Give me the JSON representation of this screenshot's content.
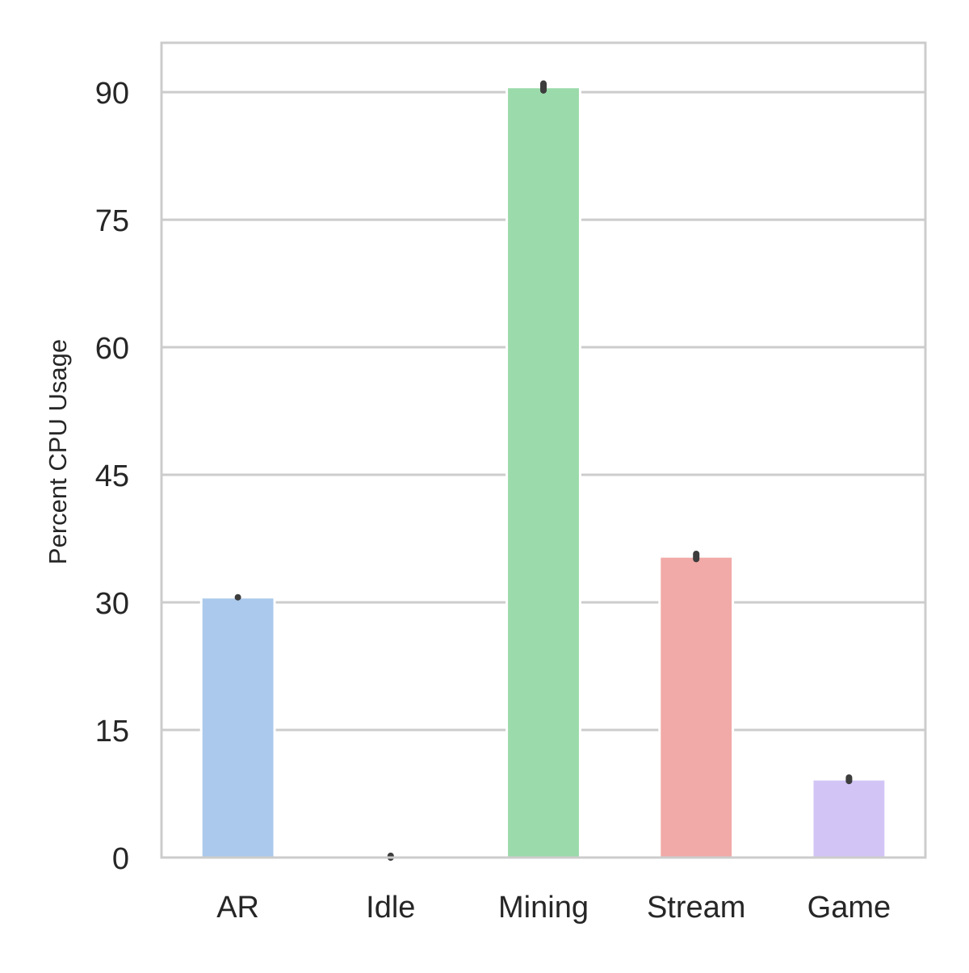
{
  "chart_data": {
    "type": "bar",
    "title": "",
    "xlabel": "",
    "ylabel": "Percent CPU Usage",
    "categories": [
      "AR",
      "Idle",
      "Mining",
      "Stream",
      "Game"
    ],
    "values": [
      30.6,
      0.0,
      90.6,
      35.4,
      9.2
    ],
    "error_bar_tops": [
      30.6,
      0.2,
      91.0,
      35.7,
      9.4
    ],
    "error_bar_bottoms": [
      30.6,
      0.0,
      90.2,
      35.1,
      9.0
    ],
    "ylim": [
      0,
      95.8
    ],
    "yticks": [
      0,
      15,
      30,
      45,
      60,
      75,
      90
    ],
    "ytick_labels": [
      "0",
      "15",
      "30",
      "45",
      "60",
      "75",
      "90"
    ],
    "grid": true,
    "colors": [
      "#a1c9f4",
      "#8de5a1",
      "#ff9f9b",
      "#d0bbff"
    ],
    "bar_colors": [
      "#abc9ec",
      "#ffb482",
      "#9bdaaa",
      "#f1aaa7",
      "#d2c5f6"
    ],
    "error_bar_color": "#3d3d3d",
    "grid_color": "#cccccc",
    "spine_color": "#cccccc"
  }
}
